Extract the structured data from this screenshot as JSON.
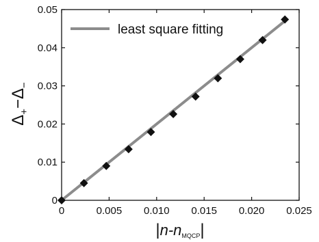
{
  "chart_data": {
    "type": "scatter",
    "title": "",
    "xlabel": "|n-n_MQCP|",
    "xlabel_parts": {
      "open_bar": "|",
      "main": "n-n",
      "subscript": "MQCP",
      "close_bar": "|"
    },
    "ylabel": "Δ+−Δ−",
    "ylabel_parts": {
      "a": "Δ",
      "a_sub": "+",
      "minus": "−",
      "b": "Δ",
      "b_sub": "−"
    },
    "xlim": [
      0,
      0.025
    ],
    "ylim": [
      0,
      0.05
    ],
    "x_ticks": [
      0,
      0.005,
      0.01,
      0.015,
      0.02,
      0.025
    ],
    "x_tick_labels": [
      "0",
      "0.005",
      "0.010",
      "0.015",
      "0.020",
      "0.025"
    ],
    "y_ticks": [
      0,
      0.01,
      0.02,
      0.03,
      0.04,
      0.05
    ],
    "y_tick_labels": [
      "0",
      "0.01",
      "0.02",
      "0.03",
      "0.04",
      "0.05"
    ],
    "grid": false,
    "legend_position": "top-left",
    "series": [
      {
        "kind": "markers",
        "marker": "diamond",
        "color": "#111111",
        "x": [
          0,
          0.00235,
          0.0047,
          0.00705,
          0.0094,
          0.01175,
          0.0141,
          0.01645,
          0.0188,
          0.02115,
          0.0235
        ],
        "y": [
          0,
          0.0045,
          0.009,
          0.0134,
          0.0179,
          0.0226,
          0.0272,
          0.032,
          0.037,
          0.042,
          0.0474
        ]
      },
      {
        "kind": "line",
        "name": "least square fitting",
        "color": "#8c8c8c",
        "x": [
          0,
          0.0235
        ],
        "y": [
          0,
          0.047
        ]
      }
    ]
  }
}
